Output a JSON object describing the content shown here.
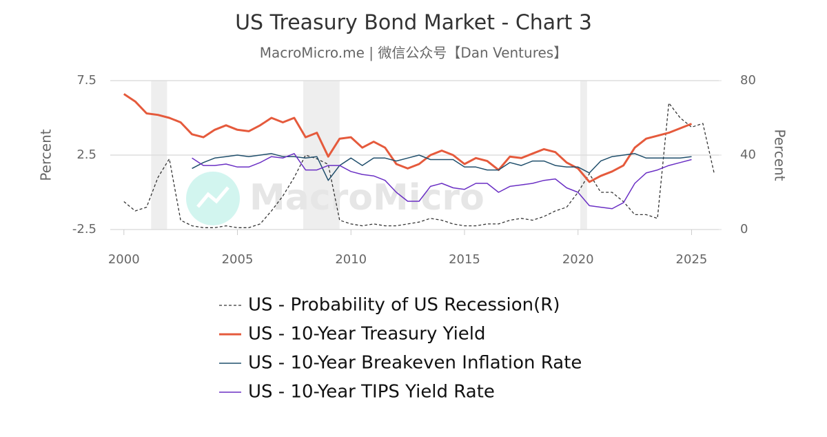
{
  "chart_data": {
    "type": "line",
    "title": "US Treasury Bond Market - Chart 3",
    "subtitle": "MacroMicro.me | 微信公众号【Dan Ventures】",
    "watermark": "MacroMicro",
    "y_label": "Percent",
    "y2_label": "Percent",
    "xlim": [
      1999.4,
      2026.2
    ],
    "xticks": [
      2000,
      2005,
      2010,
      2015,
      2020,
      2025
    ],
    "ylim": [
      -2.5,
      7.5
    ],
    "yticks": [
      -2.5,
      2.5,
      7.5
    ],
    "y2lim": [
      0,
      80
    ],
    "y2ticks": [
      0,
      40,
      80
    ],
    "grid": true,
    "shaded_periods": [
      [
        2001.2,
        2001.9
      ],
      [
        2007.9,
        2009.5
      ],
      [
        2020.1,
        2020.4
      ]
    ],
    "shade_color": "#eeeeee",
    "x": [
      2000,
      2000.5,
      2001,
      2001.5,
      2002,
      2002.5,
      2003,
      2003.5,
      2004,
      2004.5,
      2005,
      2005.5,
      2006,
      2006.5,
      2007,
      2007.5,
      2008,
      2008.5,
      2009,
      2009.5,
      2010,
      2010.5,
      2011,
      2011.5,
      2012,
      2012.5,
      2013,
      2013.5,
      2014,
      2014.5,
      2015,
      2015.5,
      2016,
      2016.5,
      2017,
      2017.5,
      2018,
      2018.5,
      2019,
      2019.5,
      2020,
      2020.5,
      2021,
      2021.5,
      2022,
      2022.5,
      2023,
      2023.5,
      2024,
      2024.5,
      2025,
      2025.5,
      2026
    ],
    "series": [
      {
        "name": "US - Probability of US Recession(R)",
        "color": "#333333",
        "line_style": "dashed",
        "width": 1.3,
        "axis": "y2",
        "values": [
          15,
          10,
          12,
          28,
          38,
          5,
          2,
          1,
          1,
          2,
          1,
          1,
          3,
          10,
          18,
          28,
          40,
          38,
          35,
          5,
          3,
          2,
          3,
          2,
          2,
          3,
          4,
          6,
          5,
          3,
          2,
          2,
          3,
          3,
          5,
          6,
          5,
          7,
          10,
          12,
          20,
          30,
          20,
          20,
          15,
          8,
          8,
          6,
          68,
          60,
          55,
          57,
          30
        ]
      },
      {
        "name": "US - 10-Year Treasury Yield",
        "color": "#e55a3c",
        "line_style": "solid",
        "width": 3,
        "values": [
          6.6,
          6.1,
          5.3,
          5.2,
          5.0,
          4.7,
          3.9,
          3.7,
          4.2,
          4.5,
          4.2,
          4.1,
          4.5,
          5.0,
          4.7,
          5.0,
          3.7,
          4.0,
          2.4,
          3.6,
          3.7,
          3.0,
          3.4,
          3.0,
          1.9,
          1.6,
          1.9,
          2.5,
          2.8,
          2.5,
          1.9,
          2.3,
          2.1,
          1.5,
          2.4,
          2.3,
          2.6,
          2.9,
          2.7,
          2.0,
          1.6,
          0.7,
          1.1,
          1.4,
          1.8,
          3.0,
          3.6,
          3.8,
          4.0,
          4.3,
          4.6,
          null,
          null
        ]
      },
      {
        "name": "US - 10-Year Breakeven Inflation Rate",
        "color": "#1f4e6b",
        "line_style": "solid",
        "width": 1.5,
        "values": [
          null,
          null,
          null,
          null,
          null,
          null,
          1.6,
          2.0,
          2.3,
          2.4,
          2.5,
          2.4,
          2.5,
          2.6,
          2.4,
          2.4,
          2.3,
          2.4,
          0.8,
          1.8,
          2.3,
          1.8,
          2.3,
          2.3,
          2.1,
          2.3,
          2.5,
          2.2,
          2.2,
          2.2,
          1.7,
          1.7,
          1.5,
          1.5,
          2.0,
          1.8,
          2.1,
          2.1,
          1.8,
          1.7,
          1.7,
          1.3,
          2.1,
          2.4,
          2.5,
          2.6,
          2.3,
          2.3,
          2.3,
          2.3,
          2.4,
          null,
          null
        ]
      },
      {
        "name": "US - 10-Year TIPS Yield Rate",
        "color": "#6a2fc4",
        "line_style": "solid",
        "width": 1.5,
        "values": [
          null,
          null,
          null,
          null,
          null,
          null,
          2.3,
          1.8,
          1.8,
          1.9,
          1.7,
          1.7,
          2.0,
          2.4,
          2.3,
          2.6,
          1.5,
          1.5,
          1.8,
          1.8,
          1.4,
          1.2,
          1.1,
          0.8,
          0.0,
          -0.6,
          -0.6,
          0.4,
          0.6,
          0.3,
          0.2,
          0.6,
          0.6,
          0.0,
          0.4,
          0.5,
          0.6,
          0.8,
          0.9,
          0.3,
          0.0,
          -0.9,
          -1.0,
          -1.1,
          -0.7,
          0.6,
          1.3,
          1.5,
          1.8,
          2.0,
          2.2,
          null,
          null
        ]
      }
    ]
  }
}
